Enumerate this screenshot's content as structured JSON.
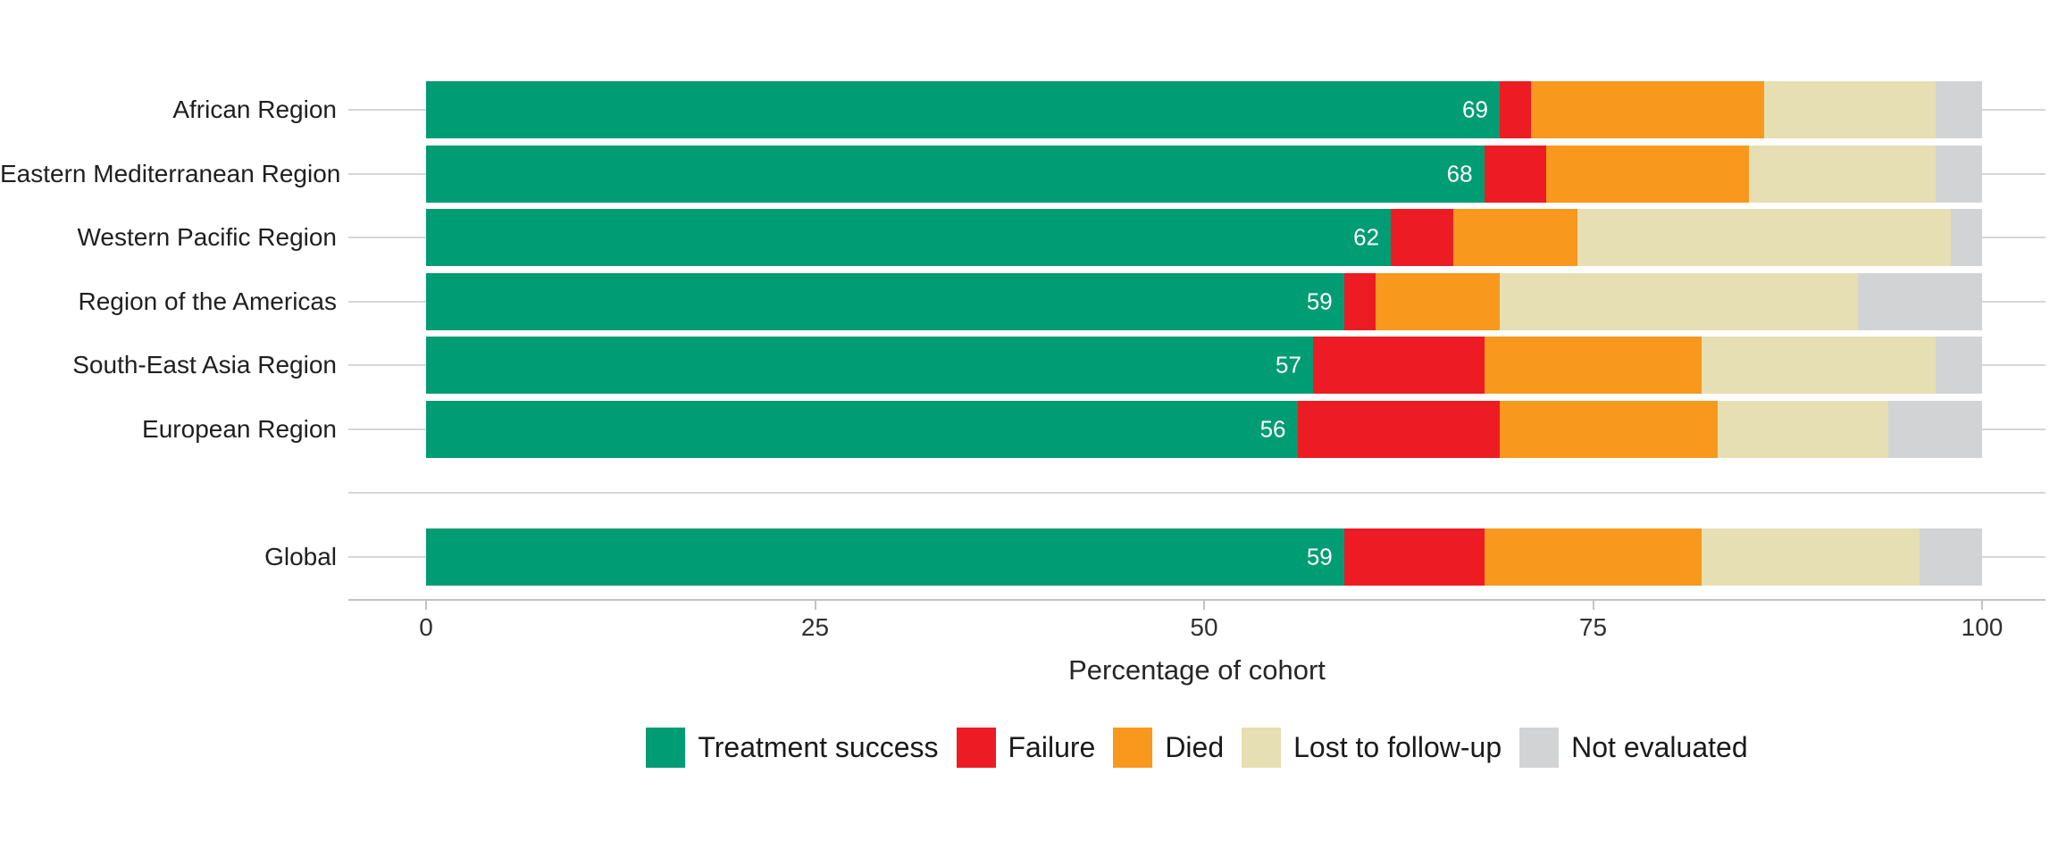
{
  "chart_data": {
    "type": "bar",
    "orientation": "horizontal",
    "stacked": true,
    "title": "",
    "xlabel": "Percentage of cohort",
    "ylabel": "",
    "xlim": [
      0,
      100
    ],
    "x_ticks": [
      0,
      25,
      50,
      75,
      100
    ],
    "x_tick_labels": [
      "0",
      "25",
      "50",
      "75",
      "100"
    ],
    "grid": "horizontal-category-lines",
    "legend_position": "bottom",
    "series_names": [
      "Treatment success",
      "Failure",
      "Died",
      "Lost to follow-up",
      "Not evaluated"
    ],
    "series_colors": [
      "#009C73",
      "#ED1C24",
      "#F8981D",
      "#E5DFB3",
      "#D2D3D4"
    ],
    "rows": [
      {
        "label": "African Region",
        "spacer": false,
        "values": [
          69,
          2,
          15,
          11,
          3
        ],
        "bar_label": "69"
      },
      {
        "label": "Eastern Mediterranean Region",
        "spacer": false,
        "values": [
          68,
          4,
          13,
          12,
          3
        ],
        "bar_label": "68"
      },
      {
        "label": "Western Pacific Region",
        "spacer": false,
        "values": [
          62,
          4,
          8,
          24,
          2
        ],
        "bar_label": "62"
      },
      {
        "label": "Region of the Americas",
        "spacer": false,
        "values": [
          59,
          2,
          8,
          23,
          8
        ],
        "bar_label": "59"
      },
      {
        "label": "South-East Asia Region",
        "spacer": false,
        "values": [
          57,
          11,
          14,
          15,
          3
        ],
        "bar_label": "57"
      },
      {
        "label": "European Region",
        "spacer": false,
        "values": [
          56,
          13,
          14,
          11,
          6
        ],
        "bar_label": "56"
      },
      {
        "label": "",
        "spacer": true,
        "values": null,
        "bar_label": ""
      },
      {
        "label": "Global",
        "spacer": false,
        "values": [
          59,
          9,
          14,
          14,
          4
        ],
        "bar_label": "59"
      }
    ]
  },
  "axis": {
    "x_title": "Percentage of cohort",
    "x_tick_labels": [
      "0",
      "25",
      "50",
      "75",
      "100"
    ]
  },
  "legend": {
    "items": [
      {
        "label": "Treatment success",
        "color": "#009C73"
      },
      {
        "label": "Failure",
        "color": "#ED1C24"
      },
      {
        "label": "Died",
        "color": "#F8981D"
      },
      {
        "label": "Lost to follow-up",
        "color": "#E5DFB3"
      },
      {
        "label": "Not evaluated",
        "color": "#D2D3D4"
      }
    ]
  },
  "colors": {
    "treatment_success": "#009C73",
    "failure": "#ED1C24",
    "died": "#F8981D",
    "lost_to_follow_up": "#E5DFB3",
    "not_evaluated": "#D2D3D4",
    "gridline": "#d6d6d6",
    "axis": "#c2c2c2",
    "bar_value_text": "#ffffff"
  }
}
